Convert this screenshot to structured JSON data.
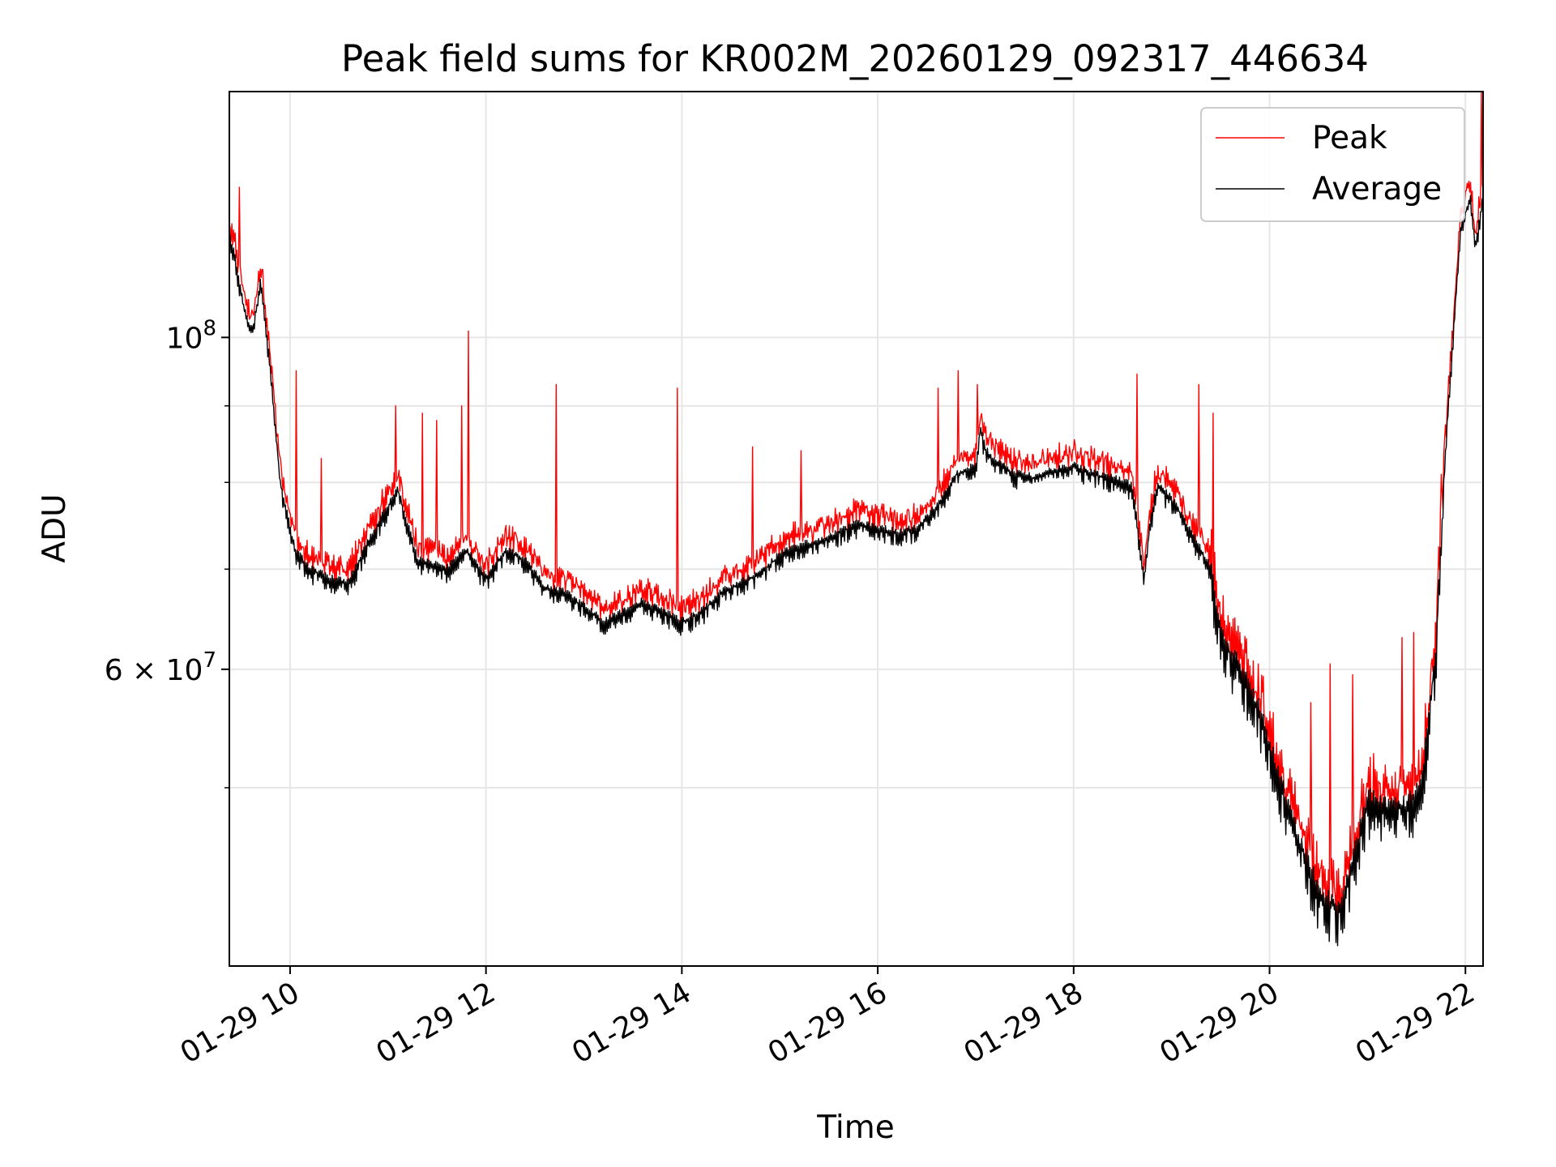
{
  "chart_data": {
    "type": "line",
    "title": "Peak field sums for KR002M_20260129_092317_446634",
    "xlabel": "Time",
    "ylabel": "ADU",
    "x_unit": "hours",
    "xlim": [
      9.38,
      22.18
    ],
    "ylim": [
      38000000,
      146000000
    ],
    "yscale": "log",
    "grid": true,
    "legend_position": "top-right",
    "x_ticks": [
      {
        "value": 10,
        "label": "01-29 10"
      },
      {
        "value": 12,
        "label": "01-29 12"
      },
      {
        "value": 14,
        "label": "01-29 14"
      },
      {
        "value": 16,
        "label": "01-29 16"
      },
      {
        "value": 18,
        "label": "01-29 18"
      },
      {
        "value": 20,
        "label": "01-29 20"
      },
      {
        "value": 22,
        "label": "01-29 22"
      }
    ],
    "y_major_ticks": [
      {
        "value": 100000000,
        "label_base": "10",
        "label_exp": "8"
      },
      {
        "value": 60000000,
        "label_base": "6 × 10",
        "label_exp": "7"
      }
    ],
    "y_minor_ticks": [
      50000000,
      70000000,
      80000000,
      90000000
    ],
    "series": [
      {
        "name": "Peak",
        "color": "#ff0000"
      },
      {
        "name": "Average",
        "color": "#000000"
      }
    ],
    "average_profile": {
      "x": [
        9.38,
        9.45,
        9.55,
        9.62,
        9.7,
        9.8,
        9.9,
        10.05,
        10.2,
        10.4,
        10.6,
        10.8,
        10.95,
        11.1,
        11.3,
        11.6,
        11.8,
        12.0,
        12.2,
        12.4,
        12.6,
        12.8,
        13.0,
        13.2,
        13.4,
        13.6,
        13.8,
        14.0,
        14.2,
        14.4,
        14.6,
        14.8,
        15.0,
        15.2,
        15.4,
        15.6,
        15.8,
        16.0,
        16.2,
        16.4,
        16.6,
        16.8,
        17.0,
        17.05,
        17.1,
        17.2,
        17.4,
        17.6,
        17.8,
        18.0,
        18.2,
        18.4,
        18.6,
        18.72,
        18.78,
        18.85,
        19.0,
        19.2,
        19.4,
        19.5,
        19.7,
        19.9,
        20.1,
        20.3,
        20.5,
        20.7,
        20.8,
        21.0,
        21.2,
        21.4,
        21.55,
        21.7,
        21.8,
        21.95,
        22.05,
        22.1,
        22.18
      ],
      "y": [
        117000000,
        112000000,
        103000000,
        101000000,
        109000000,
        95000000,
        80000000,
        72000000,
        70000000,
        69000000,
        68500000,
        73000000,
        76000000,
        79000000,
        71000000,
        70000000,
        72000000,
        69000000,
        72000000,
        71000000,
        68000000,
        67500000,
        66000000,
        64500000,
        65500000,
        66500000,
        65500000,
        64500000,
        65500000,
        67500000,
        68500000,
        69500000,
        71500000,
        72500000,
        73000000,
        74000000,
        75000000,
        74500000,
        74000000,
        74500000,
        77000000,
        81000000,
        82000000,
        87000000,
        84000000,
        82500000,
        81000000,
        80500000,
        81500000,
        82000000,
        81000000,
        80500000,
        79500000,
        69000000,
        75000000,
        79500000,
        78000000,
        74000000,
        70000000,
        63000000,
        60000000,
        56000000,
        50500000,
        46000000,
        42500000,
        41500000,
        43000000,
        49000000,
        48500000,
        48500000,
        50000000,
        62000000,
        85000000,
        118000000,
        124000000,
        115000000,
        124000000
      ]
    },
    "peak_spikes": [
      {
        "x": 9.48,
        "y": 126000000
      },
      {
        "x": 9.72,
        "y": 111000000
      },
      {
        "x": 10.06,
        "y": 95000000
      },
      {
        "x": 10.32,
        "y": 83000000
      },
      {
        "x": 11.08,
        "y": 90000000
      },
      {
        "x": 11.35,
        "y": 89000000
      },
      {
        "x": 11.5,
        "y": 88000000
      },
      {
        "x": 11.75,
        "y": 90000000
      },
      {
        "x": 11.82,
        "y": 101000000
      },
      {
        "x": 12.72,
        "y": 93000000
      },
      {
        "x": 13.95,
        "y": 92500000
      },
      {
        "x": 14.72,
        "y": 84500000
      },
      {
        "x": 15.22,
        "y": 84000000
      },
      {
        "x": 16.62,
        "y": 92500000
      },
      {
        "x": 16.82,
        "y": 95000000
      },
      {
        "x": 17.02,
        "y": 93000000
      },
      {
        "x": 18.65,
        "y": 94500000
      },
      {
        "x": 19.28,
        "y": 93000000
      },
      {
        "x": 19.42,
        "y": 89000000
      },
      {
        "x": 20.42,
        "y": 57000000
      },
      {
        "x": 20.62,
        "y": 60500000
      },
      {
        "x": 20.85,
        "y": 59500000
      },
      {
        "x": 21.35,
        "y": 63000000
      },
      {
        "x": 21.47,
        "y": 63500000
      },
      {
        "x": 21.75,
        "y": 81000000
      },
      {
        "x": 21.86,
        "y": 101000000
      },
      {
        "x": 22.16,
        "y": 146000000
      }
    ],
    "noise_seed": 20260129
  }
}
